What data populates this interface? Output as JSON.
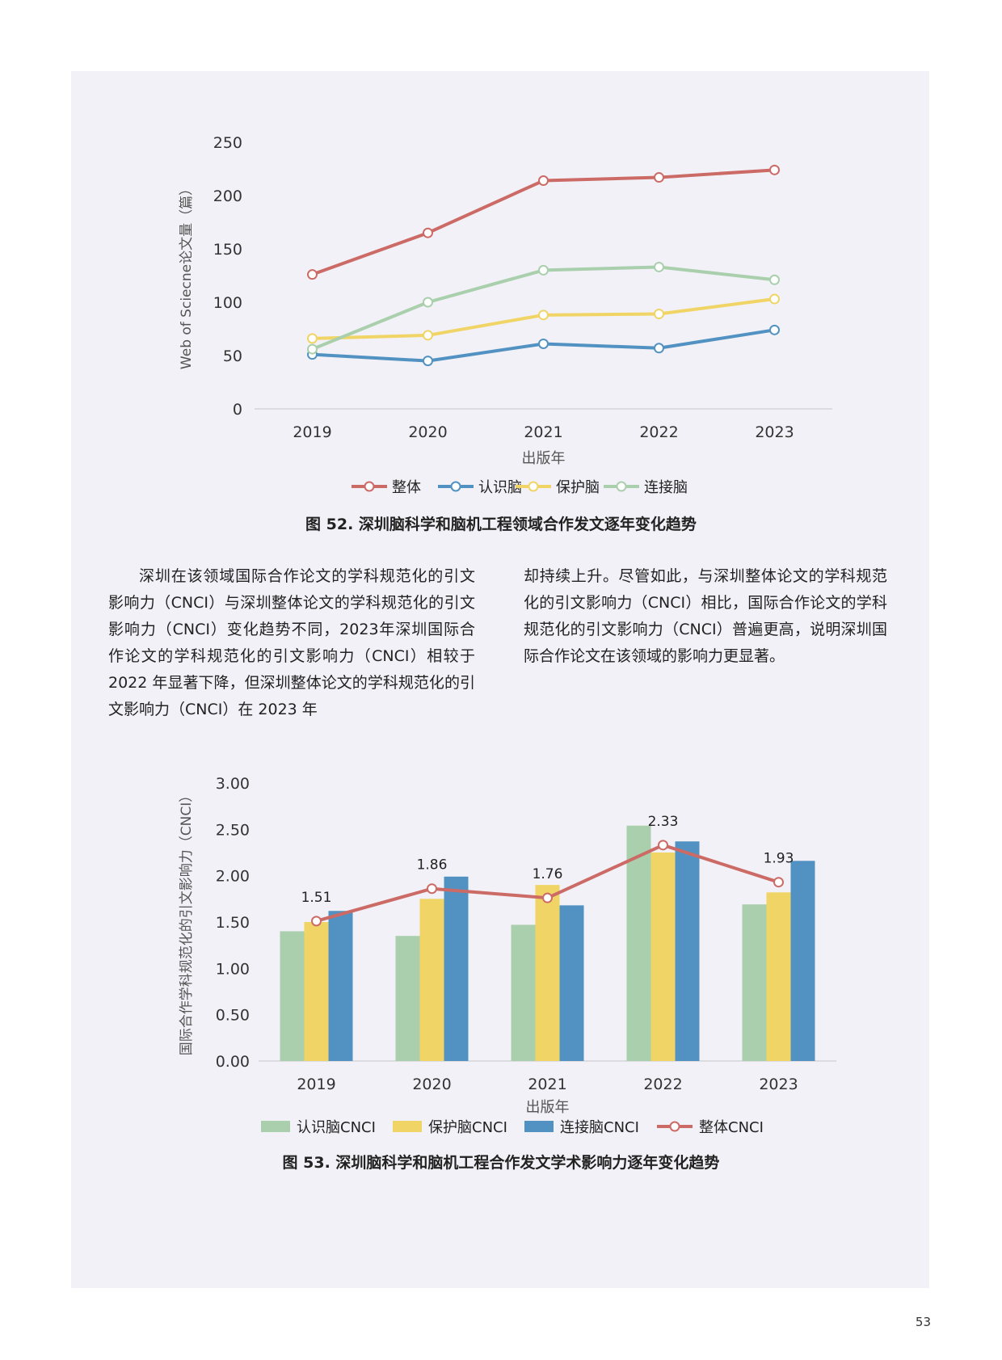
{
  "page_number": "53",
  "figure52": {
    "caption": "图 52. 深圳脑科学和脑机工程领域合作发文逐年变化趋势"
  },
  "figure53": {
    "caption": "图 53. 深圳脑科学和脑机工程合作发文学术影响力逐年变化趋势"
  },
  "body": {
    "left": "深圳在该领域国际合作论文的学科规范化的引文影响力（CNCI）与深圳整体论文的学科规范化的引文影响力（CNCI）变化趋势不同，2023年深圳国际合作论文的学科规范化的引文影响力（CNCI）相较于 2022 年显著下降，但深圳整体论文的学科规范化的引文影响力（CNCI）在 2023 年",
    "right": "却持续上升。尽管如此，与深圳整体论文的学科规范化的引文影响力（CNCI）相比，国际合作论文的学科规范化的引文影响力（CNCI）普遍更高，说明深圳国际合作论文在该领域的影响力更显著。"
  },
  "chart_data": [
    {
      "type": "line",
      "x": [
        "2019",
        "2020",
        "2021",
        "2022",
        "2023"
      ],
      "xlabel": "出版年",
      "ylabel": "Web of Sciecne论文量（篇）",
      "ylim": [
        0,
        250
      ],
      "yticks": [
        "0",
        "50",
        "100",
        "150",
        "200",
        "250"
      ],
      "legend_position": "bottom",
      "series": [
        {
          "name": "整体",
          "color": "#cc6a66",
          "values": [
            126,
            165,
            214,
            217,
            224
          ]
        },
        {
          "name": "认识脑",
          "color": "#5292c2",
          "values": [
            51,
            45,
            61,
            57,
            74
          ]
        },
        {
          "name": "保护脑",
          "color": "#f0d566",
          "values": [
            66,
            69,
            88,
            89,
            103
          ]
        },
        {
          "name": "连接脑",
          "color": "#a9cfac",
          "values": [
            56,
            100,
            130,
            133,
            121
          ]
        }
      ]
    },
    {
      "type": "bar",
      "categories": [
        "2019",
        "2020",
        "2021",
        "2022",
        "2023"
      ],
      "xlabel": "出版年",
      "ylabel": "国际合作学科规范化的引文影响力（CNCI）",
      "ylim": [
        0,
        3
      ],
      "yticks": [
        "0.00",
        "0.50",
        "1.00",
        "1.50",
        "2.00",
        "2.50",
        "3.00"
      ],
      "legend_position": "bottom",
      "series": [
        {
          "name": "认识脑CNCI",
          "kind": "bar",
          "color": "#a9cfac",
          "values": [
            1.4,
            1.35,
            1.47,
            2.54,
            1.69
          ]
        },
        {
          "name": "保护脑CNCI",
          "kind": "bar",
          "color": "#f0d566",
          "values": [
            1.5,
            1.75,
            1.9,
            2.25,
            1.82
          ]
        },
        {
          "name": "连接脑CNCI",
          "kind": "bar",
          "color": "#5292c2",
          "values": [
            1.62,
            1.99,
            1.68,
            2.37,
            2.16
          ]
        },
        {
          "name": "整体CNCI",
          "kind": "line",
          "color": "#cc6a66",
          "values": [
            1.51,
            1.86,
            1.76,
            2.33,
            1.93
          ],
          "labels": [
            "1.51",
            "1.86",
            "1.76",
            "2.33",
            "1.93"
          ]
        }
      ]
    }
  ]
}
